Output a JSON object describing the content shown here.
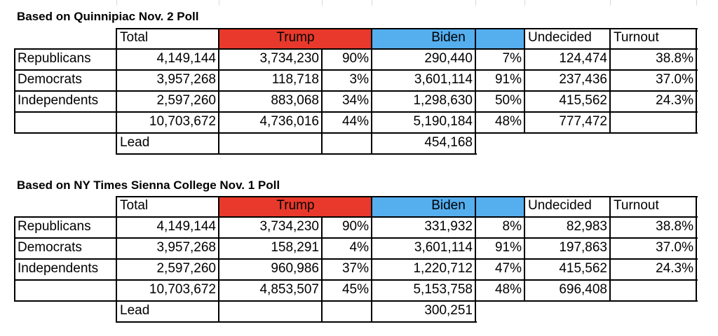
{
  "tables": [
    {
      "title": "Based on Quinnipiac Nov. 2 Poll",
      "headers": {
        "total": "Total",
        "trump": "Trump",
        "biden": "Biden",
        "undecided": "Undecided",
        "turnout": "Turnout"
      },
      "rows": [
        {
          "label": "Republicans",
          "total": "4,149,144",
          "trump": "3,734,230",
          "trump_pct": "90%",
          "biden": "290,440",
          "biden_pct": "7%",
          "undecided": "124,474",
          "turnout": "38.8%"
        },
        {
          "label": "Democrats",
          "total": "3,957,268",
          "trump": "118,718",
          "trump_pct": "3%",
          "biden": "3,601,114",
          "biden_pct": "91%",
          "undecided": "237,436",
          "turnout": "37.0%"
        },
        {
          "label": "Independents",
          "total": "2,597,260",
          "trump": "883,068",
          "trump_pct": "34%",
          "biden": "1,298,630",
          "biden_pct": "50%",
          "undecided": "415,562",
          "turnout": "24.3%"
        }
      ],
      "totals": {
        "total": "10,703,672",
        "trump": "4,736,016",
        "trump_pct": "44%",
        "biden": "5,190,184",
        "biden_pct": "48%",
        "undecided": "777,472"
      },
      "lead": {
        "label": "Lead",
        "value": "454,168"
      }
    },
    {
      "title": "Based on NY Times Sienna College Nov. 1 Poll",
      "headers": {
        "total": "Total",
        "trump": "Trump",
        "biden": "Biden",
        "undecided": "Undecided",
        "turnout": "Turnout"
      },
      "rows": [
        {
          "label": "Republicans",
          "total": "4,149,144",
          "trump": "3,734,230",
          "trump_pct": "90%",
          "biden": "331,932",
          "biden_pct": "8%",
          "undecided": "82,983",
          "turnout": "38.8%"
        },
        {
          "label": "Democrats",
          "total": "3,957,268",
          "trump": "158,291",
          "trump_pct": "4%",
          "biden": "3,601,114",
          "biden_pct": "91%",
          "undecided": "197,863",
          "turnout": "37.0%"
        },
        {
          "label": "Independents",
          "total": "2,597,260",
          "trump": "960,986",
          "trump_pct": "37%",
          "biden": "1,220,712",
          "biden_pct": "47%",
          "undecided": "415,562",
          "turnout": "24.3%"
        }
      ],
      "totals": {
        "total": "10,703,672",
        "trump": "4,853,507",
        "trump_pct": "45%",
        "biden": "5,153,758",
        "biden_pct": "48%",
        "undecided": "696,408"
      },
      "lead": {
        "label": "Lead",
        "value": "300,251"
      }
    }
  ],
  "colors": {
    "trump": "#e8392c",
    "biden": "#55aeee"
  }
}
